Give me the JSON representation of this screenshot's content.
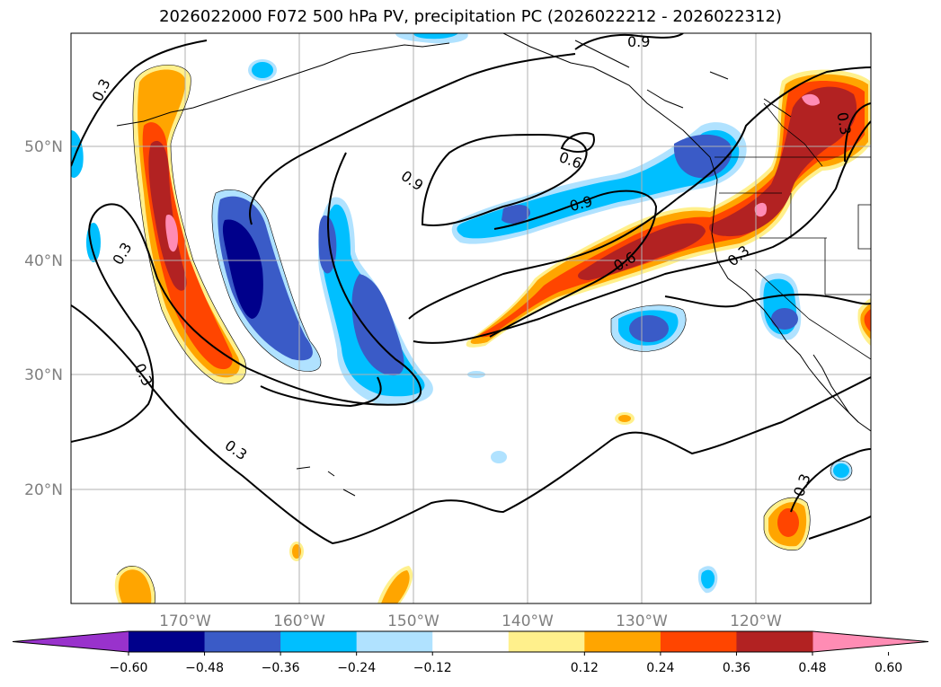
{
  "title": "2026022000 F072 500 hPa PV, precipitation PC (2026022212 - 2026022312)",
  "lon_ticks": [
    "170°W",
    "160°W",
    "150°W",
    "140°W",
    "130°W",
    "120°W"
  ],
  "lat_ticks": [
    "50°N",
    "40°N",
    "30°N",
    "20°N"
  ],
  "contour_labels": [
    "0.3",
    "0.6",
    "0.9"
  ],
  "colorbar": {
    "tick_labels": [
      "−0.60",
      "−0.48",
      "−0.36",
      "−0.24",
      "−0.12",
      "0.12",
      "0.24",
      "0.36",
      "0.48",
      "0.60"
    ],
    "colors": [
      "#9932cc",
      "#00008b",
      "#3a5bc7",
      "#00bfff",
      "#b0e2ff",
      "#ffffff",
      "#fff08c",
      "#ffa500",
      "#ff4500",
      "#b22222",
      "#ff8cb4"
    ]
  }
}
